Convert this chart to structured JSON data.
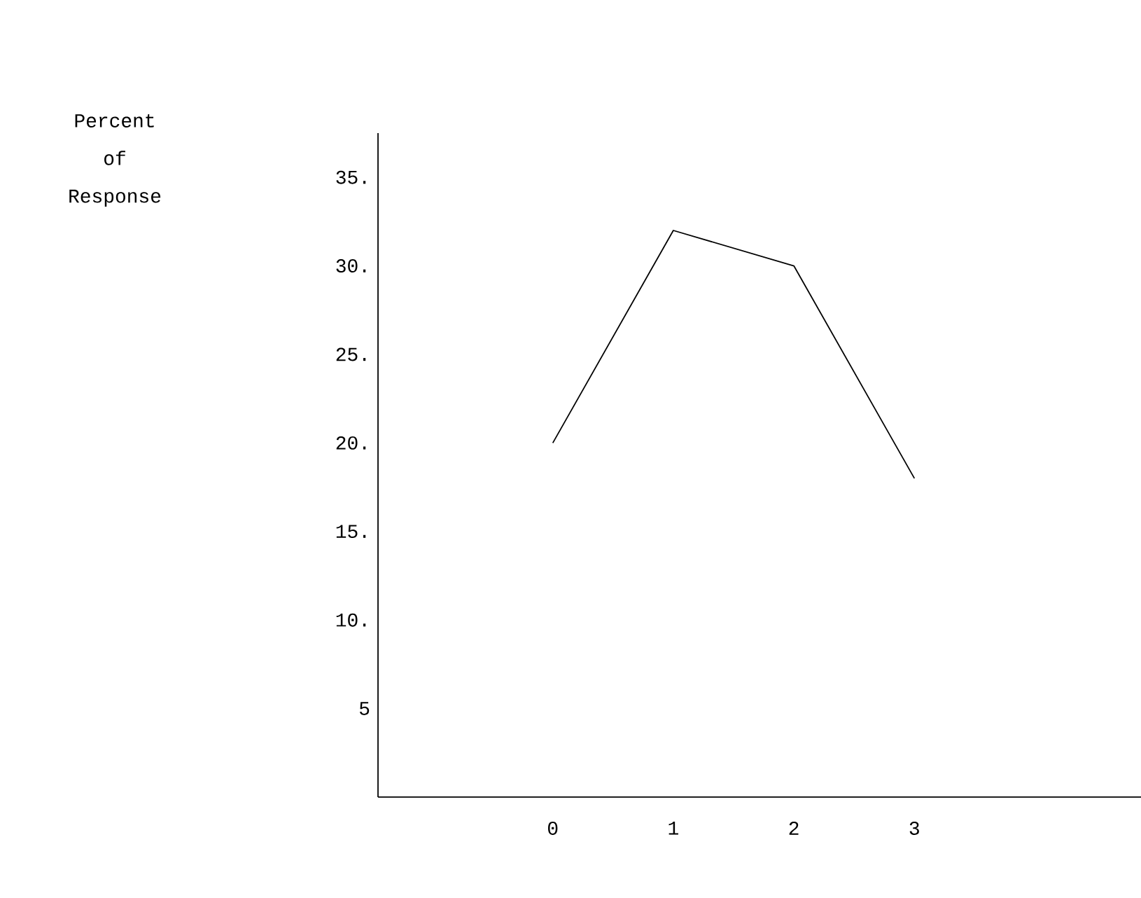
{
  "chart_data": {
    "type": "line",
    "ylabel": "Percent of Response",
    "x": [
      0,
      1,
      2,
      3
    ],
    "series": [
      {
        "color": "#000000",
        "values": [
          20,
          32,
          30,
          18
        ]
      }
    ],
    "xlim": [
      -1.45,
      4.88
    ],
    "xticks": [
      0,
      1,
      2,
      3
    ],
    "ylim": [
      0,
      37.5
    ],
    "yticks": [
      {
        "value": 5,
        "label": "5"
      },
      {
        "value": 10,
        "label": "10."
      },
      {
        "value": 15,
        "label": "15."
      },
      {
        "value": 20,
        "label": "20."
      },
      {
        "value": 25,
        "label": "25."
      },
      {
        "value": 30,
        "label": "30."
      },
      {
        "value": 35,
        "label": "35."
      }
    ],
    "grid": false,
    "marker": "none",
    "line_style": "solid"
  }
}
